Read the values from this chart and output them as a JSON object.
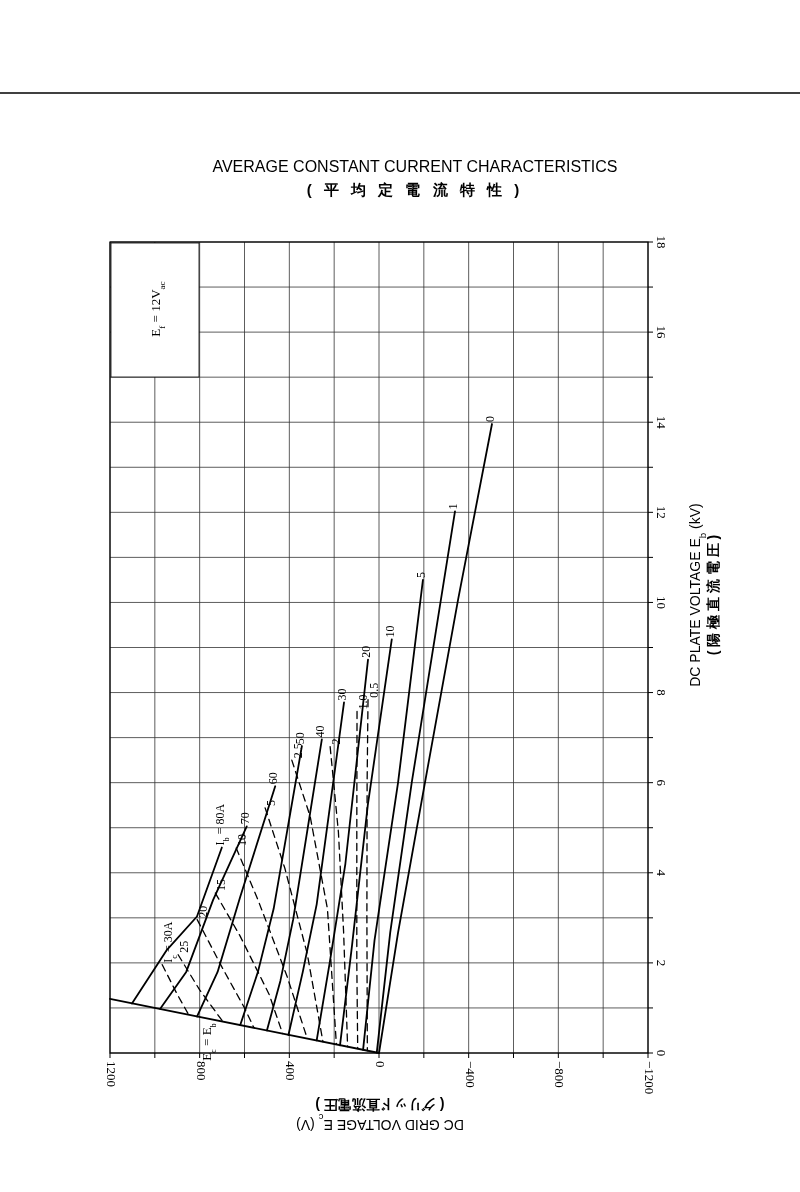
{
  "chart_data": {
    "type": "line",
    "title": "AVERAGE CONSTANT CURRENT CHARACTERISTICS",
    "subtitle": "( 平 均 定 電 流 特 性 )",
    "xlabel": "DC GRID VOLTAGE    E$_{c}$ (V)\n( グリッド直流電圧 )",
    "ylabel": "DC PLATE VOLTAGE    E$_{b}$ (kV)\n( 陽 極 直 流 電 圧 )",
    "xlim": [
      1200,
      -1200
    ],
    "ylim": [
      0,
      18
    ],
    "xticks": [
      1200,
      {
        "value": 1000,
        "label": null
      },
      800,
      {
        "value": 600,
        "label": null
      },
      400,
      {
        "value": 200,
        "label": null
      },
      0,
      {
        "value": -200,
        "label": null
      },
      {
        "value": -400,
        "label": "−400"
      },
      {
        "value": -600,
        "label": null
      },
      {
        "value": -800,
        "label": "−800"
      },
      {
        "value": -1000,
        "label": null
      },
      {
        "value": -1200,
        "label": "−1200"
      }
    ],
    "yticks": [
      0,
      {
        "value": 1,
        "label": null
      },
      2,
      {
        "value": 3,
        "label": null
      },
      4,
      {
        "value": 5,
        "label": null
      },
      6,
      {
        "value": 7,
        "label": null
      },
      8,
      {
        "value": 9,
        "label": null
      },
      10,
      {
        "value": 11,
        "label": null
      },
      12,
      {
        "value": 13,
        "label": null
      },
      14,
      {
        "value": 15,
        "label": null
      },
      16,
      {
        "value": 17,
        "label": null
      },
      18
    ],
    "grid": true,
    "annotations": [
      "E$_{f}$ = 12V$_{ac}$",
      {
        "text": "E$_{c}$ = E$_{b}$",
        "x": 750,
        "y": 0.75
      }
    ],
    "series": [
      {
        "color": "#000000",
        "x": [
          1200,
          0
        ],
        "values": [
          1.2,
          0
        ],
        "line_style": "solid"
      },
      {
        "name": "I$_{b}$ = 80A",
        "color": "#000000",
        "x": [
          1102,
          946,
          812,
          701
        ],
        "values": [
          1.1,
          2.29,
          3.03,
          4.56
        ],
        "line_style": "solid"
      },
      {
        "name": "70",
        "color": "#000000",
        "x": [
          976,
          860,
          740,
          590
        ],
        "values": [
          0.98,
          1.8,
          3.4,
          5.03
        ],
        "line_style": "solid"
      },
      {
        "name": "60",
        "color": "#000000",
        "x": [
          812,
          720,
          619,
          463
        ],
        "values": [
          0.81,
          1.8,
          3.47,
          5.92
        ],
        "line_style": "solid"
      },
      {
        "name": "50",
        "color": "#000000",
        "x": [
          619,
          540,
          470,
          344
        ],
        "values": [
          0.62,
          1.8,
          3.2,
          6.81
        ],
        "line_style": "solid"
      },
      {
        "name": "40",
        "color": "#000000",
        "x": [
          500,
          440,
          383,
          255
        ],
        "values": [
          0.5,
          1.6,
          2.96,
          6.96
        ],
        "line_style": "solid"
      },
      {
        "name": "30",
        "color": "#000000",
        "x": [
          404,
          340,
          278,
          156
        ],
        "values": [
          0.4,
          1.8,
          3.3,
          7.78
        ],
        "line_style": "solid"
      },
      {
        "name": "20",
        "color": "#000000",
        "x": [
          278,
          220,
          150,
          49
        ],
        "values": [
          0.28,
          2,
          4.2,
          8.73
        ],
        "line_style": "solid"
      },
      {
        "name": "10",
        "color": "#000000",
        "x": [
          174,
          120,
          50,
          -57
        ],
        "values": [
          0.17,
          2.4,
          5.5,
          9.18
        ],
        "line_style": "solid"
      },
      {
        "name": "5",
        "color": "#000000",
        "x": [
          71,
          20,
          -85,
          -196
        ],
        "values": [
          0.07,
          2.5,
          6,
          10.5
        ],
        "line_style": "solid"
      },
      {
        "name": "1",
        "color": "#000000",
        "x": [
          10,
          -50,
          -146,
          -339
        ],
        "values": [
          0.01,
          2.67,
          6,
          12.02
        ],
        "line_style": "solid"
      },
      {
        "name": "0",
        "color": "#000000",
        "x": [
          0,
          -85,
          -205,
          -353,
          -504
        ],
        "values": [
          0,
          2.67,
          6,
          10.07,
          13.96
        ],
        "line_style": "solid"
      },
      {
        "name": "I$_{c}$ = 30A",
        "color": "#000000",
        "x": [
          967,
          900,
          850
        ],
        "values": [
          1.96,
          1.3,
          0.86
        ],
        "line_style": "dashed"
      },
      {
        "name": "25",
        "color": "#000000",
        "x": [
          896,
          800,
          700
        ],
        "values": [
          2.18,
          1.4,
          0.72
        ],
        "line_style": "dashed"
      },
      {
        "name": "20",
        "color": "#000000",
        "x": [
          811,
          700,
          600,
          560
        ],
        "values": [
          2.96,
          1.9,
          1,
          0.58
        ],
        "line_style": "dashed"
      },
      {
        "name": "15",
        "color": "#000000",
        "x": [
          730,
          620,
          490,
          430
        ],
        "values": [
          3.55,
          2.6,
          1.3,
          0.43
        ],
        "line_style": "dashed"
      },
      {
        "name": "10",
        "color": "#000000",
        "x": [
          637,
          540,
          410,
          320
        ],
        "values": [
          4.55,
          3.4,
          1.7,
          0.32
        ],
        "line_style": "dashed"
      },
      {
        "name": "5",
        "color": "#000000",
        "x": [
          508,
          420,
          320,
          250
        ],
        "values": [
          5.44,
          4.1,
          2.2,
          0.25
        ],
        "line_style": "dashed"
      },
      {
        "name": "2.5",
        "color": "#000000",
        "x": [
          389,
          307,
          230,
          190
        ],
        "values": [
          6.5,
          5.25,
          3.2,
          0.19
        ],
        "line_style": "dashed"
      },
      {
        "name": "2",
        "color": "#000000",
        "x": [
          218,
          181,
          158,
          140
        ],
        "values": [
          6.8,
          4.9,
          2.7,
          0.14
        ],
        "line_style": "dashed"
      },
      {
        "name": "1.0",
        "color": "#000000",
        "x": [
          98,
          99,
          99,
          95
        ],
        "values": [
          7.58,
          5,
          2,
          0.1
        ],
        "line_style": "dashed"
      },
      {
        "name": "0.5",
        "color": "#000000",
        "x": [
          49,
          53,
          54,
          52
        ],
        "values": [
          7.84,
          6,
          3,
          0.05
        ],
        "line_style": "dashed"
      }
    ]
  }
}
